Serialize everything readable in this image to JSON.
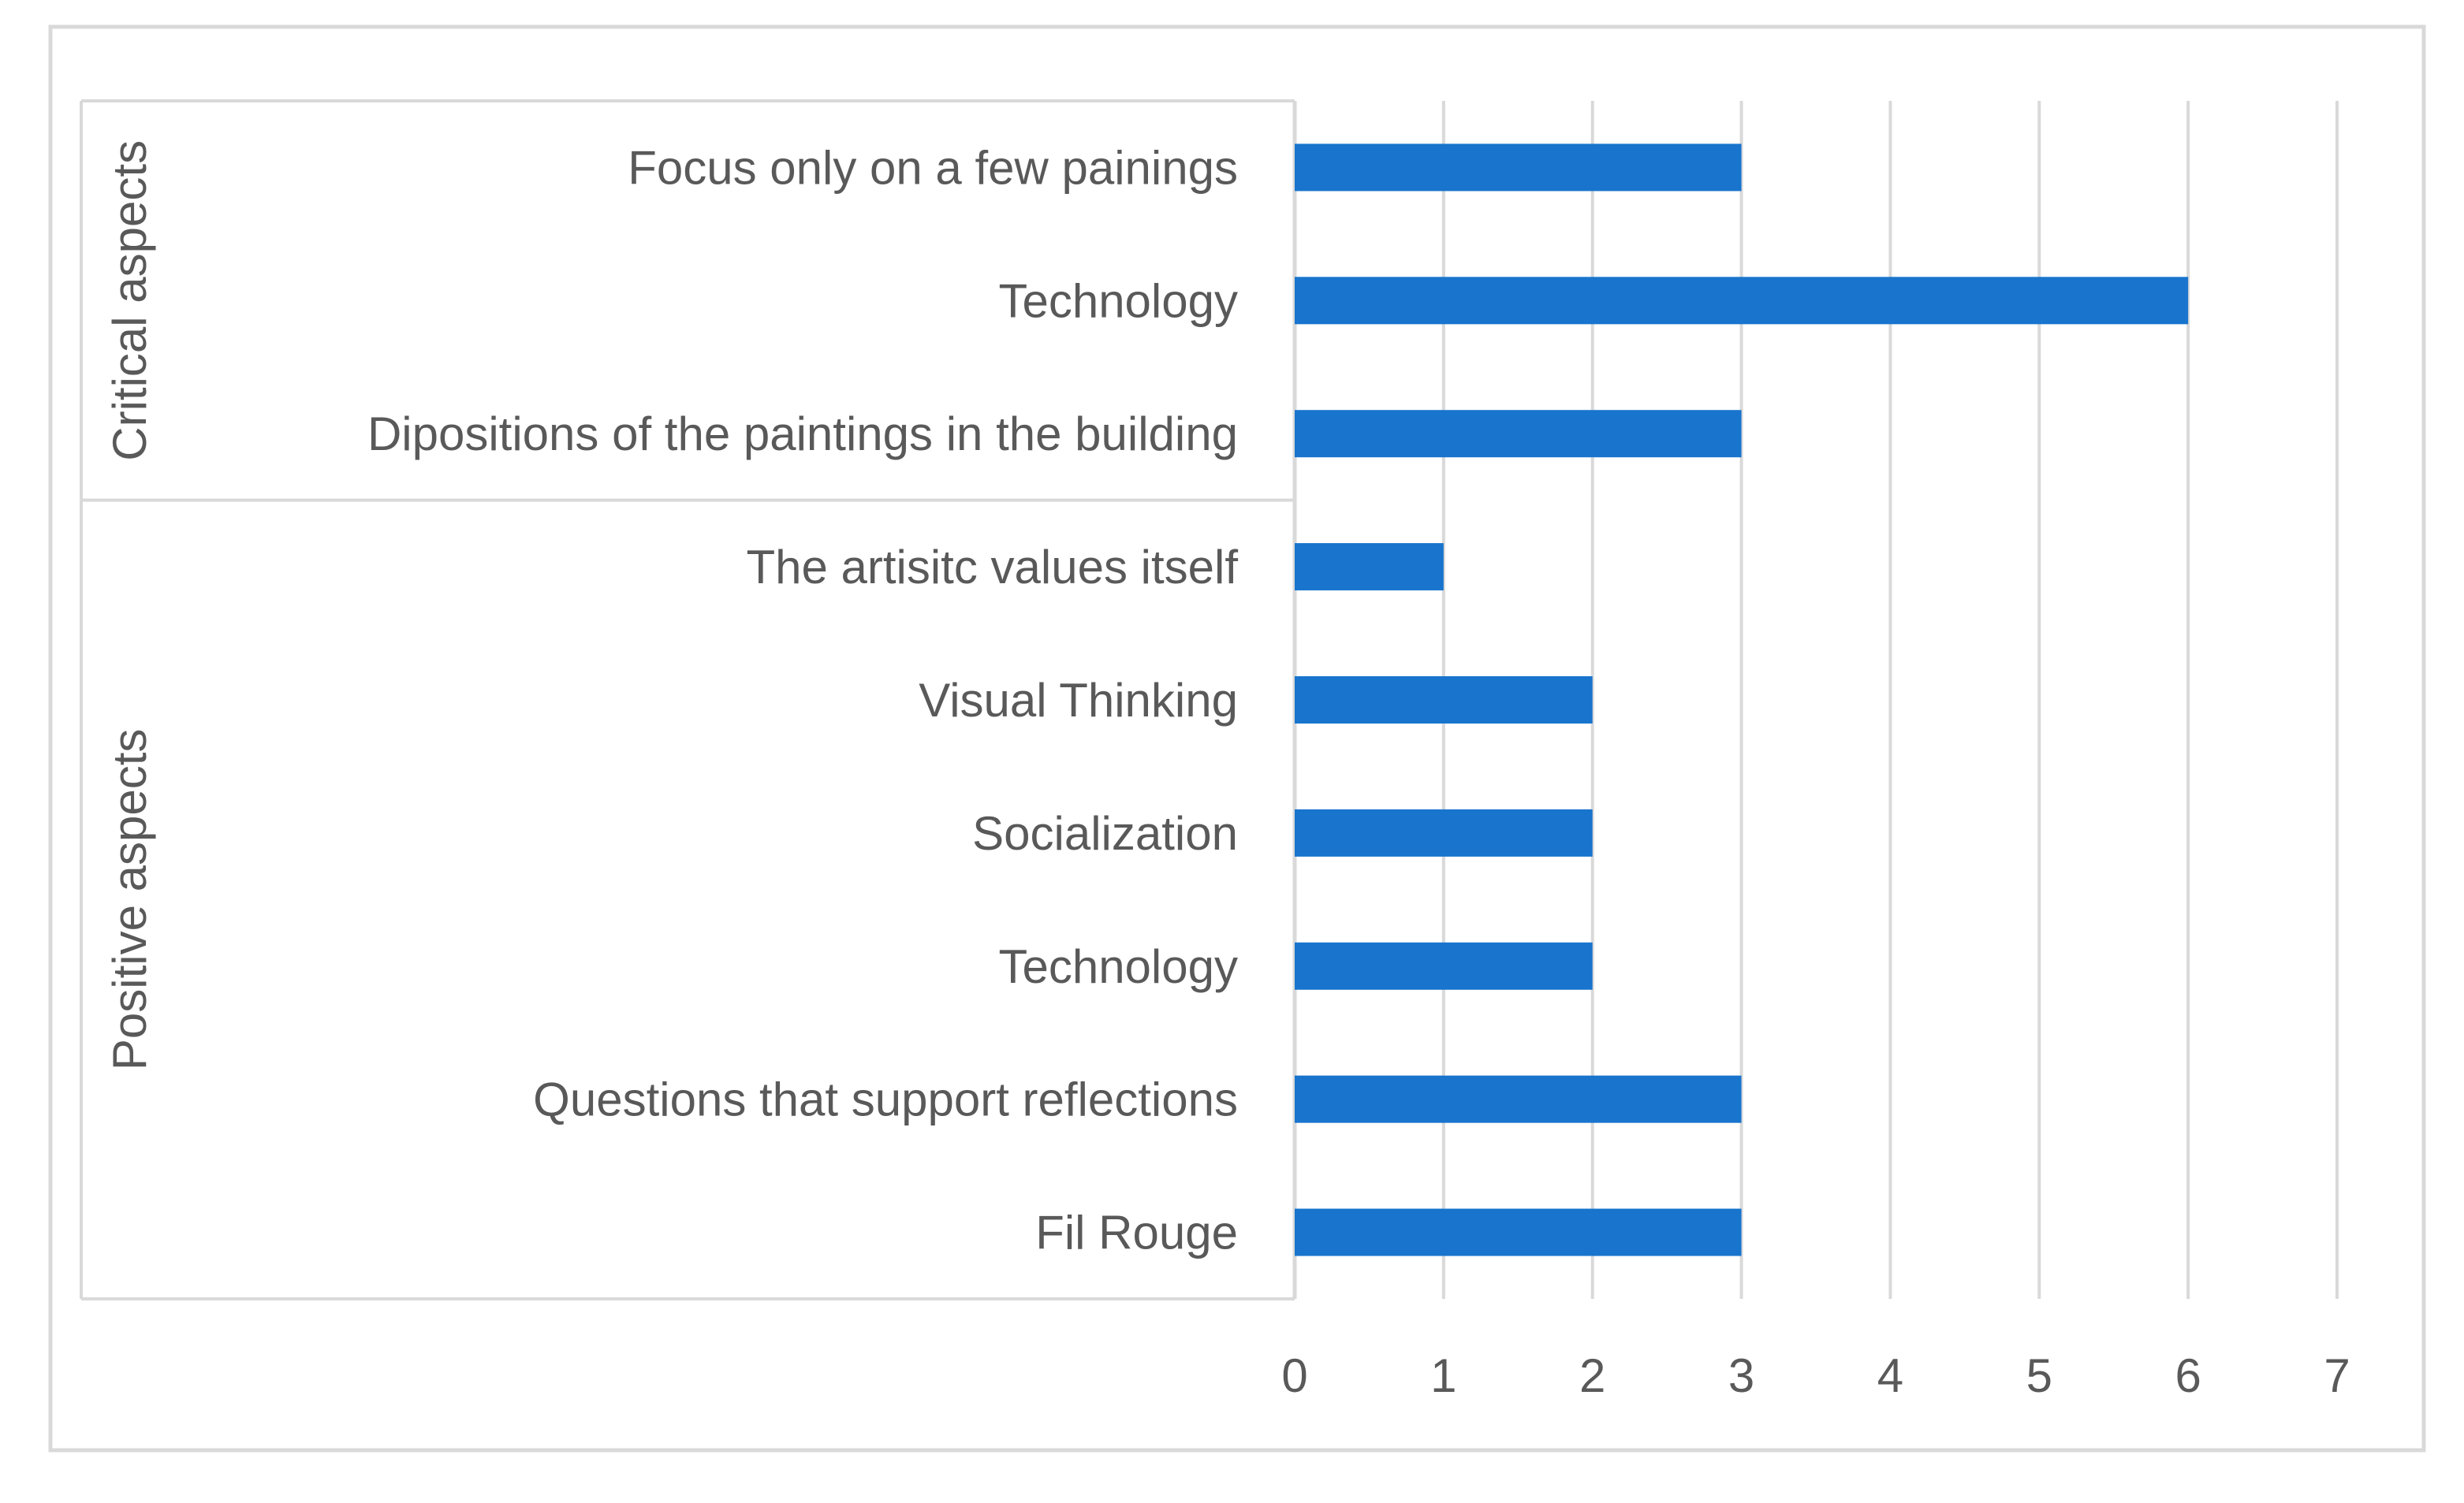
{
  "chart_data": {
    "type": "bar",
    "orientation": "horizontal",
    "groups": [
      {
        "label": "Critical aspects",
        "categories": [
          "Focus only on a few painings",
          "Technology",
          "Dipositions of the paintings in the building"
        ],
        "values": [
          3,
          6,
          3
        ]
      },
      {
        "label": "Positive aspects",
        "categories": [
          "The artisitc values itself",
          "Visual Thinking",
          "Socialization",
          "Technology",
          "Questions that support reflections",
          "Fil Rouge"
        ],
        "values": [
          1,
          2,
          2,
          2,
          3,
          3
        ]
      }
    ],
    "xlim": [
      0,
      7
    ],
    "xticks": [
      "0",
      "1",
      "2",
      "3",
      "4",
      "5",
      "6",
      "7"
    ],
    "grid": true,
    "bar_color": "#1874CD",
    "grid_color": "#D9D9D9",
    "text_color": "#595959"
  }
}
